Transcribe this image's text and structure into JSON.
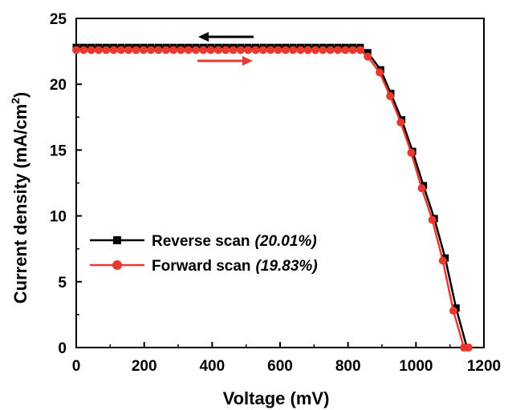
{
  "chart_data": {
    "type": "line",
    "xlabel": "Voltage (mV)",
    "ylabel": "Current density (mA/cm",
    "ylabel_sup": "2",
    "ylabel_close": ")",
    "xlim": [
      0,
      1200
    ],
    "ylim": [
      0,
      25
    ],
    "xticks": [
      0,
      200,
      400,
      600,
      800,
      1000,
      1200
    ],
    "yticks": [
      0,
      5,
      10,
      15,
      20,
      25
    ],
    "grid": false,
    "legend_position": "lower-left",
    "scan_arrows": [
      {
        "direction": "left",
        "color": "#000000"
      },
      {
        "direction": "right",
        "color": "#e8392f"
      }
    ],
    "series": [
      {
        "name": "Reverse scan",
        "efficiency": "(20.01%)",
        "color": "#000000",
        "marker": "square",
        "x": [
          0,
          22,
          44,
          66,
          88,
          110,
          132,
          154,
          176,
          198,
          220,
          242,
          264,
          286,
          308,
          330,
          352,
          374,
          396,
          418,
          440,
          462,
          484,
          506,
          528,
          550,
          572,
          594,
          616,
          638,
          660,
          682,
          704,
          726,
          748,
          770,
          792,
          814,
          836,
          858,
          896,
          926,
          958,
          990,
          1022,
          1054,
          1086,
          1118,
          1150
        ],
        "y": [
          22.8,
          22.8,
          22.8,
          22.8,
          22.8,
          22.8,
          22.8,
          22.8,
          22.8,
          22.8,
          22.8,
          22.8,
          22.8,
          22.8,
          22.8,
          22.8,
          22.8,
          22.8,
          22.8,
          22.8,
          22.8,
          22.8,
          22.8,
          22.8,
          22.8,
          22.8,
          22.8,
          22.8,
          22.8,
          22.8,
          22.8,
          22.8,
          22.8,
          22.8,
          22.8,
          22.8,
          22.8,
          22.8,
          22.8,
          22.4,
          21.1,
          19.3,
          17.3,
          14.9,
          12.3,
          9.8,
          6.8,
          3.0,
          0.0
        ]
      },
      {
        "name": "Forward scan",
        "efficiency": "(19.83%)",
        "color": "#e8392f",
        "marker": "circle",
        "x": [
          0,
          22,
          44,
          66,
          88,
          110,
          132,
          154,
          176,
          198,
          220,
          242,
          264,
          286,
          308,
          330,
          352,
          374,
          396,
          418,
          440,
          462,
          484,
          506,
          528,
          550,
          572,
          594,
          616,
          638,
          660,
          682,
          704,
          726,
          748,
          770,
          792,
          814,
          836,
          858,
          893,
          924,
          955,
          986,
          1017,
          1048,
          1079,
          1110,
          1141,
          1155
        ],
        "y": [
          22.6,
          22.6,
          22.6,
          22.6,
          22.6,
          22.6,
          22.6,
          22.6,
          22.6,
          22.6,
          22.6,
          22.6,
          22.6,
          22.6,
          22.6,
          22.6,
          22.6,
          22.6,
          22.6,
          22.6,
          22.6,
          22.6,
          22.6,
          22.6,
          22.6,
          22.6,
          22.6,
          22.6,
          22.6,
          22.6,
          22.6,
          22.6,
          22.6,
          22.6,
          22.6,
          22.6,
          22.6,
          22.6,
          22.6,
          22.1,
          20.9,
          19.1,
          17.1,
          14.8,
          12.1,
          9.7,
          6.6,
          2.8,
          0.0,
          0.0
        ]
      }
    ]
  }
}
